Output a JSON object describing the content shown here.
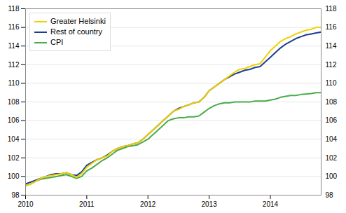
{
  "chart_data": {
    "type": "line",
    "x": [
      2010.0,
      2010.083,
      2010.167,
      2010.25,
      2010.333,
      2010.417,
      2010.5,
      2010.583,
      2010.667,
      2010.75,
      2010.833,
      2010.917,
      2011.0,
      2011.083,
      2011.167,
      2011.25,
      2011.333,
      2011.417,
      2011.5,
      2011.583,
      2011.667,
      2011.75,
      2011.833,
      2011.917,
      2012.0,
      2012.083,
      2012.167,
      2012.25,
      2012.333,
      2012.417,
      2012.5,
      2012.583,
      2012.667,
      2012.75,
      2012.833,
      2012.917,
      2013.0,
      2013.083,
      2013.167,
      2013.25,
      2013.333,
      2013.417,
      2013.5,
      2013.583,
      2013.667,
      2013.75,
      2013.833,
      2013.917,
      2014.0,
      2014.083,
      2014.167,
      2014.25,
      2014.333,
      2014.417,
      2014.5,
      2014.583,
      2014.667,
      2014.75,
      2014.833
    ],
    "series": [
      {
        "name": "Greater Helsinki",
        "color": "#f0d000",
        "values": [
          99.0,
          99.2,
          99.5,
          99.8,
          100.0,
          100.1,
          100.2,
          100.3,
          100.4,
          100.2,
          99.9,
          100.3,
          101.0,
          101.4,
          101.8,
          102.0,
          102.2,
          102.7,
          103.0,
          103.2,
          103.3,
          103.5,
          103.6,
          104.0,
          104.5,
          105.0,
          105.5,
          106.0,
          106.5,
          107.0,
          107.2,
          107.5,
          107.7,
          107.9,
          108.0,
          108.5,
          109.2,
          109.6,
          110.0,
          110.4,
          110.8,
          111.2,
          111.5,
          111.6,
          111.8,
          112.0,
          112.1,
          112.8,
          113.5,
          114.0,
          114.5,
          114.8,
          115.0,
          115.3,
          115.5,
          115.7,
          115.8,
          116.0,
          116.0
        ]
      },
      {
        "name": "Rest of country",
        "color": "#1a3f8f",
        "values": [
          99.2,
          99.4,
          99.6,
          99.8,
          100.0,
          100.2,
          100.3,
          100.3,
          100.4,
          100.2,
          100.1,
          100.5,
          101.2,
          101.5,
          101.8,
          102.0,
          102.3,
          102.7,
          103.0,
          103.2,
          103.3,
          103.5,
          103.6,
          104.0,
          104.5,
          105.0,
          105.5,
          106.0,
          106.5,
          107.0,
          107.3,
          107.5,
          107.7,
          107.9,
          108.0,
          108.5,
          109.2,
          109.6,
          110.0,
          110.4,
          110.7,
          111.0,
          111.2,
          111.4,
          111.5,
          111.7,
          111.8,
          112.3,
          112.8,
          113.3,
          113.8,
          114.2,
          114.5,
          114.8,
          115.0,
          115.2,
          115.3,
          115.4,
          115.5
        ]
      },
      {
        "name": "CPI",
        "color": "#4aab4a",
        "values": [
          99.0,
          99.2,
          99.5,
          99.7,
          99.8,
          99.9,
          100.0,
          100.1,
          100.2,
          100.0,
          99.8,
          100.0,
          100.6,
          100.9,
          101.3,
          101.7,
          102.0,
          102.4,
          102.8,
          103.0,
          103.2,
          103.3,
          103.4,
          103.7,
          104.0,
          104.5,
          105.0,
          105.5,
          106.0,
          106.2,
          106.3,
          106.3,
          106.4,
          106.4,
          106.5,
          106.9,
          107.3,
          107.6,
          107.8,
          107.9,
          107.9,
          108.0,
          108.0,
          108.0,
          108.0,
          108.1,
          108.1,
          108.1,
          108.2,
          108.3,
          108.5,
          108.6,
          108.7,
          108.7,
          108.8,
          108.85,
          108.9,
          109.0,
          109.0
        ]
      }
    ],
    "xlim": [
      2010.0,
      2014.83
    ],
    "xticks": [
      2010,
      2011,
      2012,
      2013,
      2014
    ],
    "ylim": [
      98,
      118
    ],
    "yticks": [
      98,
      100,
      102,
      104,
      106,
      108,
      110,
      112,
      114,
      116,
      118
    ],
    "y2lim": [
      98,
      118
    ],
    "y2ticks": [
      98,
      100,
      102,
      104,
      106,
      108,
      110,
      112,
      114,
      116,
      118
    ],
    "grid": true,
    "legend": "upper left"
  }
}
